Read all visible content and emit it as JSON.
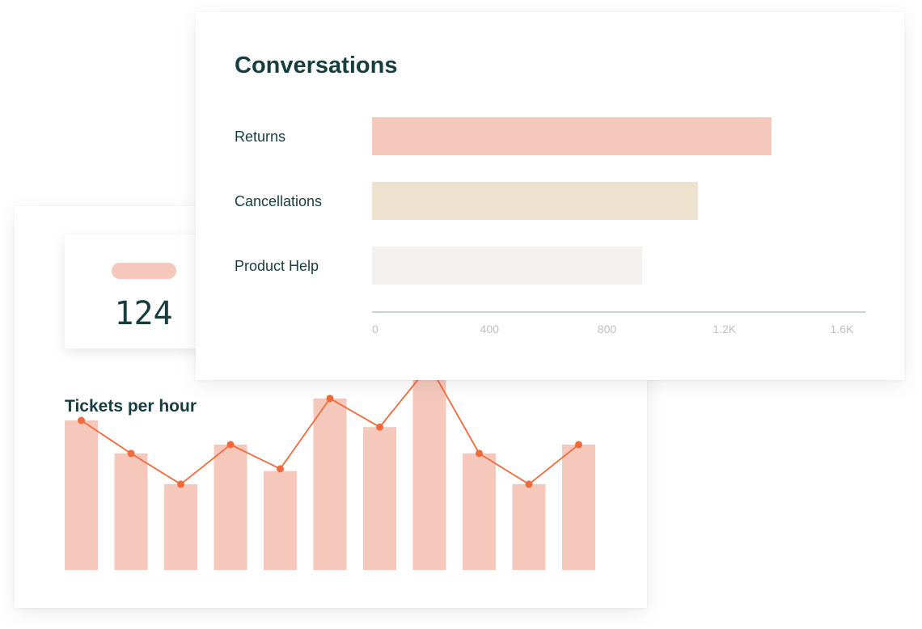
{
  "stat": {
    "value": "124"
  },
  "colors": {
    "salmon": "#f6c8bc",
    "beige": "#ede2ce",
    "light_gray": "#f3f1ee",
    "line": "#f26a3a",
    "text": "#173d3f",
    "axis": "#b9c4c4",
    "tick": "#bfbfbf"
  },
  "chart_data": [
    {
      "type": "bar",
      "orientation": "horizontal",
      "title": "Conversations",
      "categories": [
        "Returns",
        "Cancellations",
        "Product Help"
      ],
      "values": [
        1360,
        1110,
        920
      ],
      "bar_colors": [
        "#f6c8bc",
        "#ede2ce",
        "#f3f1ee"
      ],
      "xlim": [
        0,
        1680
      ],
      "x_ticks": [
        0,
        400,
        800,
        1200,
        1600
      ],
      "x_tick_labels": [
        "0",
        "400",
        "800",
        "1.2K",
        "1.6K"
      ],
      "grid": false
    },
    {
      "type": "bar+line",
      "title": "Tickets per hour",
      "bar_values": [
        68,
        53,
        39,
        57,
        45,
        78,
        65,
        93,
        53,
        39,
        57
      ],
      "line_values": [
        68,
        53,
        39,
        57,
        46,
        78,
        65,
        93,
        53,
        39,
        57
      ],
      "ylim": [
        0,
        100
      ],
      "bar_color": "#f6c8bc",
      "line_color": "#f26a3a",
      "axes_visible": false
    }
  ]
}
